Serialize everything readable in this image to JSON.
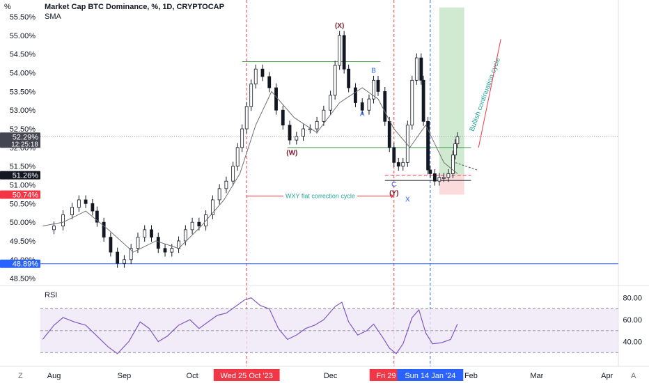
{
  "header": {
    "corner_unit": "%",
    "title": "Market Cap BTC Dominance, %, 1D, CRYPTOCAP",
    "indicator": "SMA",
    "rsi_label": "RSI"
  },
  "controls": {
    "left": "Z",
    "right": "A"
  },
  "colors": {
    "up": "#ffffff",
    "down": "#131722",
    "candle_outline": "#131722",
    "sma": "#6f6f6f",
    "red_dash": "#f23645",
    "blue_dash": "#2962ff",
    "green_zone": "#c8e6c9",
    "red_zone": "#fcd7d9",
    "rsi_band": "#ede7f6",
    "rsi_line": "#7e57c2",
    "wave_label": "#7b1c2e",
    "wave_letter": "#2962ff",
    "annotation": "#26a69a",
    "bull_text": "#26a69a",
    "arrow_red": "#f23645"
  },
  "chart_data": {
    "type": "candlestick",
    "title": "Market Cap BTC Dominance, %, 1D, CRYPTOCAP",
    "interval": "1D",
    "y_ticks": [
      "55.50%",
      "55.00%",
      "54.50%",
      "54.00%",
      "53.50%",
      "53.00%",
      "52.50%",
      "52.00%",
      "51.50%",
      "51.00%",
      "50.50%",
      "50.00%",
      "49.50%",
      "49.00%",
      "48.50%"
    ],
    "ylim": [
      48.4,
      55.8
    ],
    "x_ticks": [
      "Aug",
      "Sep",
      "Oct",
      "Dec",
      "Feb",
      "Mar",
      "Apr"
    ],
    "x_dates": [
      "2023-08-01",
      "2023-09-01",
      "2023-10-01",
      "2023-12-01",
      "2024-02-01",
      "2024-03-01",
      "2024-04-01"
    ],
    "x_range": [
      "2023-07-26",
      "2024-04-06"
    ],
    "highlight_dates": [
      {
        "label": "Wed 25 Oct '23",
        "date": "2023-10-25",
        "color": "red"
      },
      {
        "label": "Fri 29 Dec",
        "date": "2023-12-29",
        "color": "red"
      },
      {
        "label": "Sun 14 Jan '24",
        "date": "2024-01-14",
        "color": "blue"
      }
    ],
    "price_tags": [
      {
        "value": 52.29,
        "text": "52.29%",
        "sub": "12:25:18",
        "color": "#434651"
      },
      {
        "value": 51.26,
        "text": "51.26%",
        "color": "#131722"
      },
      {
        "value": 50.74,
        "text": "50.74%",
        "color": "#f23645"
      },
      {
        "value": 48.89,
        "text": "48.89%",
        "color": "#2962ff"
      }
    ],
    "closes": [
      [
        "2023-07-27",
        49.8
      ],
      [
        "2023-08-01",
        49.9
      ],
      [
        "2023-08-05",
        50.2
      ],
      [
        "2023-08-09",
        50.4
      ],
      [
        "2023-08-12",
        50.6
      ],
      [
        "2023-08-15",
        50.5
      ],
      [
        "2023-08-18",
        50.3
      ],
      [
        "2023-08-20",
        50.0
      ],
      [
        "2023-08-23",
        49.6
      ],
      [
        "2023-08-26",
        49.2
      ],
      [
        "2023-08-29",
        48.9
      ],
      [
        "2023-09-01",
        49.0
      ],
      [
        "2023-09-04",
        49.3
      ],
      [
        "2023-09-07",
        49.6
      ],
      [
        "2023-09-10",
        49.8
      ],
      [
        "2023-09-13",
        49.6
      ],
      [
        "2023-09-16",
        49.3
      ],
      [
        "2023-09-19",
        49.2
      ],
      [
        "2023-09-22",
        49.3
      ],
      [
        "2023-09-25",
        49.5
      ],
      [
        "2023-09-28",
        49.8
      ],
      [
        "2023-10-01",
        50.0
      ],
      [
        "2023-10-04",
        49.9
      ],
      [
        "2023-10-07",
        50.2
      ],
      [
        "2023-10-10",
        50.6
      ],
      [
        "2023-10-13",
        50.9
      ],
      [
        "2023-10-16",
        51.1
      ],
      [
        "2023-10-19",
        51.5
      ],
      [
        "2023-10-21",
        52.0
      ],
      [
        "2023-10-23",
        52.5
      ],
      [
        "2023-10-25",
        53.1
      ],
      [
        "2023-10-27",
        53.7
      ],
      [
        "2023-10-29",
        54.1
      ],
      [
        "2023-11-01",
        53.9
      ],
      [
        "2023-11-04",
        53.6
      ],
      [
        "2023-11-07",
        53.0
      ],
      [
        "2023-11-10",
        52.6
      ],
      [
        "2023-11-13",
        52.2
      ],
      [
        "2023-11-16",
        52.3
      ],
      [
        "2023-11-19",
        52.5
      ],
      [
        "2023-11-22",
        52.5
      ],
      [
        "2023-11-25",
        52.7
      ],
      [
        "2023-11-28",
        53.0
      ],
      [
        "2023-12-01",
        53.4
      ],
      [
        "2023-12-03",
        54.2
      ],
      [
        "2023-12-05",
        55.0
      ],
      [
        "2023-12-07",
        54.1
      ],
      [
        "2023-12-09",
        53.6
      ],
      [
        "2023-12-12",
        53.2
      ],
      [
        "2023-12-15",
        53.0
      ],
      [
        "2023-12-18",
        53.3
      ],
      [
        "2023-12-20",
        53.8
      ],
      [
        "2023-12-22",
        53.5
      ],
      [
        "2023-12-25",
        52.7
      ],
      [
        "2023-12-27",
        52.0
      ],
      [
        "2023-12-29",
        51.6
      ],
      [
        "2023-12-31",
        51.5
      ],
      [
        "2024-01-02",
        51.6
      ],
      [
        "2024-01-04",
        52.6
      ],
      [
        "2024-01-06",
        53.8
      ],
      [
        "2024-01-08",
        54.4
      ],
      [
        "2024-01-10",
        53.8
      ],
      [
        "2024-01-11",
        52.7
      ],
      [
        "2024-01-13",
        51.4
      ],
      [
        "2024-01-14",
        51.3
      ],
      [
        "2024-01-16",
        51.1
      ],
      [
        "2024-01-18",
        51.2
      ],
      [
        "2024-01-20",
        51.2
      ],
      [
        "2024-01-22",
        51.3
      ],
      [
        "2024-01-24",
        51.8
      ],
      [
        "2024-01-25",
        52.1
      ],
      [
        "2024-01-26",
        52.29
      ]
    ],
    "sma": [
      [
        "2023-07-27",
        49.9
      ],
      [
        "2023-08-05",
        50.0
      ],
      [
        "2023-08-15",
        50.3
      ],
      [
        "2023-08-25",
        49.8
      ],
      [
        "2023-09-05",
        49.2
      ],
      [
        "2023-09-15",
        49.5
      ],
      [
        "2023-09-25",
        49.3
      ],
      [
        "2023-10-05",
        49.9
      ],
      [
        "2023-10-15",
        50.6
      ],
      [
        "2023-10-22",
        51.3
      ],
      [
        "2023-10-29",
        52.6
      ],
      [
        "2023-11-05",
        53.5
      ],
      [
        "2023-11-15",
        52.8
      ],
      [
        "2023-11-25",
        52.4
      ],
      [
        "2023-12-05",
        53.2
      ],
      [
        "2023-12-15",
        53.6
      ],
      [
        "2023-12-22",
        53.3
      ],
      [
        "2023-12-29",
        52.5
      ],
      [
        "2024-01-05",
        52.0
      ],
      [
        "2024-01-12",
        52.6
      ],
      [
        "2024-01-20",
        51.6
      ],
      [
        "2024-01-26",
        51.3
      ]
    ],
    "horizontal_levels": [
      {
        "value": 54.3,
        "from": "2023-10-23",
        "to": "2023-12-23",
        "color": "#43a047"
      },
      {
        "value": 52.0,
        "from": "2023-11-12",
        "to": "2024-02-01",
        "color": "#43a047"
      },
      {
        "value": 51.12,
        "from": "2023-12-25",
        "to": "2024-02-01",
        "color": "#131722"
      },
      {
        "value": 51.26,
        "from": "2023-12-25",
        "to": "2024-02-01",
        "color": "#f23645",
        "dash": true
      },
      {
        "value": 48.89,
        "from": "2023-07-26",
        "to": "2024-04-06",
        "color": "#2962ff"
      },
      {
        "value": 52.29,
        "from": "2023-07-26",
        "to": "2024-04-06",
        "color": "#9598a1",
        "dotted": true
      }
    ],
    "target_zone": {
      "from": "2024-01-18",
      "to": "2024-01-29",
      "entry": 51.26,
      "target": 55.75,
      "stop": 50.74
    },
    "waves": [
      {
        "label": "(X)",
        "date": "2023-12-05",
        "value": 55.2,
        "kind": "paren"
      },
      {
        "label": "B",
        "date": "2023-12-20",
        "value": 54.0,
        "kind": "letter"
      },
      {
        "label": "A",
        "date": "2023-12-15",
        "value": 52.85,
        "kind": "letter"
      },
      {
        "label": "(W)",
        "date": "2023-11-14",
        "value": 51.8,
        "kind": "paren"
      },
      {
        "label": "C",
        "date": "2023-12-29",
        "value": 50.95,
        "kind": "letter"
      },
      {
        "label": "(Y)",
        "date": "2023-12-29",
        "value": 50.72,
        "kind": "paren"
      },
      {
        "label": "X",
        "date": "2024-01-04",
        "value": 50.55,
        "kind": "letter"
      }
    ],
    "annotations": {
      "wxy": {
        "text": "WXY flat correction cycle",
        "from": "2023-10-25",
        "to": "2023-12-29",
        "value": 50.7
      },
      "bullish": {
        "text": "Bullish continuation cycle",
        "date": "2024-02-08",
        "value": 53.4
      }
    },
    "rsi": {
      "ylim": [
        20,
        90
      ],
      "ticks": [
        "80.00",
        "60.00",
        "40.00"
      ],
      "tick_values": [
        80,
        60,
        40
      ],
      "band": [
        30,
        70
      ],
      "mid": 50,
      "values": [
        [
          "2023-07-27",
          42
        ],
        [
          "2023-08-01",
          55
        ],
        [
          "2023-08-05",
          62
        ],
        [
          "2023-08-10",
          58
        ],
        [
          "2023-08-15",
          55
        ],
        [
          "2023-08-20",
          45
        ],
        [
          "2023-08-25",
          35
        ],
        [
          "2023-08-29",
          29
        ],
        [
          "2023-09-03",
          40
        ],
        [
          "2023-09-08",
          58
        ],
        [
          "2023-09-12",
          52
        ],
        [
          "2023-09-16",
          40
        ],
        [
          "2023-09-20",
          45
        ],
        [
          "2023-09-25",
          55
        ],
        [
          "2023-09-30",
          60
        ],
        [
          "2023-10-04",
          52
        ],
        [
          "2023-10-08",
          58
        ],
        [
          "2023-10-12",
          64
        ],
        [
          "2023-10-16",
          66
        ],
        [
          "2023-10-20",
          72
        ],
        [
          "2023-10-24",
          78
        ],
        [
          "2023-10-27",
          80
        ],
        [
          "2023-10-31",
          73
        ],
        [
          "2023-11-04",
          70
        ],
        [
          "2023-11-08",
          52
        ],
        [
          "2023-11-12",
          42
        ],
        [
          "2023-11-16",
          46
        ],
        [
          "2023-11-20",
          52
        ],
        [
          "2023-11-24",
          55
        ],
        [
          "2023-11-28",
          60
        ],
        [
          "2023-12-03",
          72
        ],
        [
          "2023-12-06",
          76
        ],
        [
          "2023-12-09",
          58
        ],
        [
          "2023-12-13",
          46
        ],
        [
          "2023-12-17",
          50
        ],
        [
          "2023-12-20",
          56
        ],
        [
          "2023-12-24",
          44
        ],
        [
          "2023-12-27",
          34
        ],
        [
          "2023-12-30",
          29
        ],
        [
          "2024-01-02",
          38
        ],
        [
          "2024-01-06",
          62
        ],
        [
          "2024-01-09",
          69
        ],
        [
          "2024-01-12",
          48
        ],
        [
          "2024-01-15",
          38
        ],
        [
          "2024-01-19",
          39
        ],
        [
          "2024-01-23",
          42
        ],
        [
          "2024-01-26",
          56
        ]
      ]
    }
  }
}
